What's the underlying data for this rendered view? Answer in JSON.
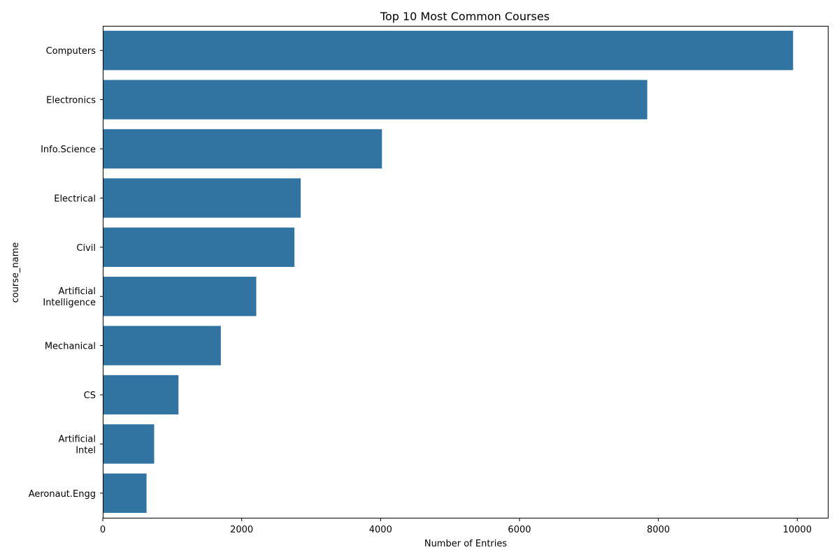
{
  "chart_data": {
    "type": "bar",
    "orientation": "horizontal",
    "title": "Top 10 Most Common Courses",
    "xlabel": "Number of Entries",
    "ylabel": "course_name",
    "categories": [
      [
        "Computers"
      ],
      [
        "Electronics"
      ],
      [
        "Info.Science"
      ],
      [
        "Electrical"
      ],
      [
        "Civil"
      ],
      [
        "Artificial",
        "Intelligence"
      ],
      [
        "Mechanical"
      ],
      [
        "CS"
      ],
      [
        "Artificial",
        "Intel"
      ],
      [
        "Aeronaut.Engg"
      ]
    ],
    "values": [
      9940,
      7840,
      4020,
      2850,
      2760,
      2210,
      1700,
      1090,
      740,
      630
    ],
    "xlim": [
      0,
      10440
    ],
    "xticks": [
      0,
      2000,
      4000,
      6000,
      8000,
      10000
    ],
    "bar_color": "#3274a1",
    "grid": false
  }
}
